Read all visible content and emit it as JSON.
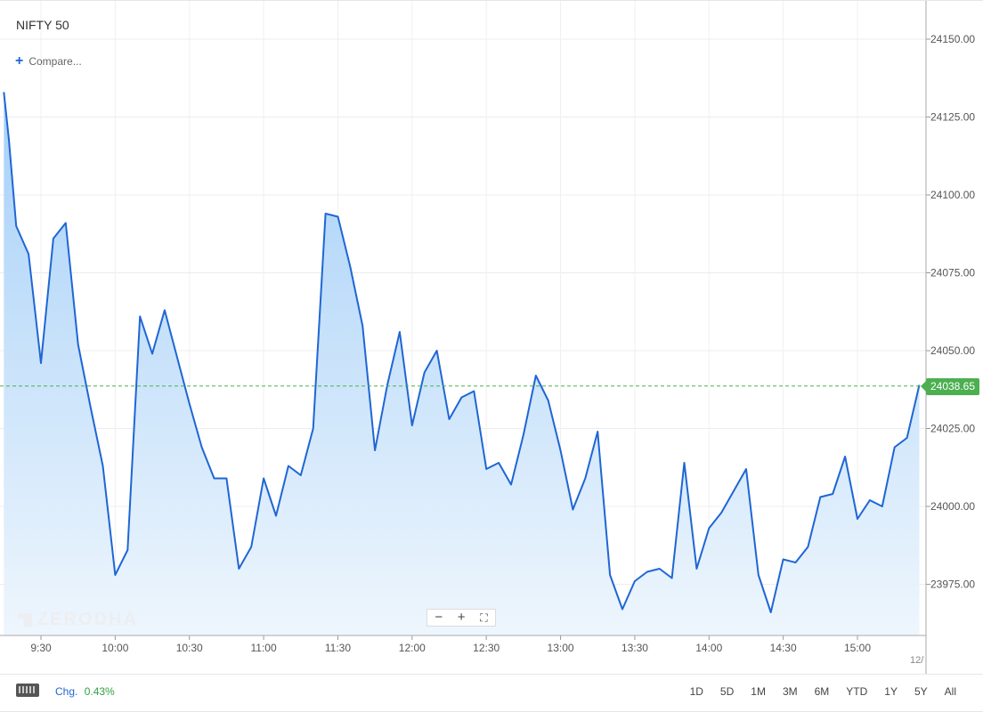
{
  "header": {
    "symbol": "NIFTY 50",
    "compare_label": "Compare..."
  },
  "watermark": "ZERODHA",
  "zoom": {
    "minus": "−",
    "plus": "+",
    "fit": "⛶"
  },
  "date_stub": "12/",
  "bottom": {
    "change_label": "Chg.",
    "change_value": "0.43%",
    "ranges": [
      "1D",
      "5D",
      "1M",
      "3M",
      "6M",
      "YTD",
      "1Y",
      "5Y",
      "All"
    ]
  },
  "colors": {
    "line": "#1f66d4",
    "fill_top": "#a6d0f8",
    "fill_bottom": "#eef6fd",
    "last_price": "#4caf50"
  },
  "chart_data": {
    "type": "area",
    "x_tick_labels": [
      "9:30",
      "10:00",
      "10:30",
      "11:00",
      "11:30",
      "12:00",
      "12:30",
      "13:00",
      "13:30",
      "14:00",
      "14:30",
      "15:00"
    ],
    "y_tick_labels": [
      "24150.00",
      "24125.00",
      "24100.00",
      "24075.00",
      "24050.00",
      "24025.00",
      "24000.00",
      "23975.00"
    ],
    "ylim": [
      23957,
      24162
    ],
    "last_price": "24038.65",
    "last_price_value": 24038.65,
    "grid": true,
    "points": [
      [
        "9:15",
        24133
      ],
      [
        "9:17",
        24118
      ],
      [
        "9:20",
        24090
      ],
      [
        "9:25",
        24081
      ],
      [
        "9:30",
        24046
      ],
      [
        "9:35",
        24086
      ],
      [
        "9:40",
        24091
      ],
      [
        "9:45",
        24052
      ],
      [
        "9:50",
        24032
      ],
      [
        "9:55",
        24013
      ],
      [
        "10:00",
        23978
      ],
      [
        "10:05",
        23986
      ],
      [
        "10:10",
        24061
      ],
      [
        "10:15",
        24049
      ],
      [
        "10:20",
        24063
      ],
      [
        "10:25",
        24048
      ],
      [
        "10:30",
        24033
      ],
      [
        "10:35",
        24019
      ],
      [
        "10:40",
        24009
      ],
      [
        "10:45",
        24009
      ],
      [
        "10:50",
        23980
      ],
      [
        "10:55",
        23987
      ],
      [
        "11:00",
        24009
      ],
      [
        "11:05",
        23997
      ],
      [
        "11:10",
        24013
      ],
      [
        "11:15",
        24010
      ],
      [
        "11:20",
        24025
      ],
      [
        "11:25",
        24094
      ],
      [
        "11:30",
        24093
      ],
      [
        "11:35",
        24077
      ],
      [
        "11:40",
        24058
      ],
      [
        "11:45",
        24018
      ],
      [
        "11:50",
        24039
      ],
      [
        "11:55",
        24056
      ],
      [
        "12:00",
        24026
      ],
      [
        "12:05",
        24043
      ],
      [
        "12:10",
        24050
      ],
      [
        "12:15",
        24028
      ],
      [
        "12:20",
        24035
      ],
      [
        "12:25",
        24037
      ],
      [
        "12:30",
        24012
      ],
      [
        "12:35",
        24014
      ],
      [
        "12:40",
        24007
      ],
      [
        "12:45",
        24023
      ],
      [
        "12:50",
        24042
      ],
      [
        "12:55",
        24034
      ],
      [
        "13:00",
        24018
      ],
      [
        "13:05",
        23999
      ],
      [
        "13:10",
        24009
      ],
      [
        "13:15",
        24024
      ],
      [
        "13:20",
        23978
      ],
      [
        "13:25",
        23967
      ],
      [
        "13:30",
        23976
      ],
      [
        "13:35",
        23979
      ],
      [
        "13:40",
        23980
      ],
      [
        "13:45",
        23977
      ],
      [
        "13:50",
        24014
      ],
      [
        "13:55",
        23980
      ],
      [
        "14:00",
        23993
      ],
      [
        "14:05",
        23998
      ],
      [
        "14:10",
        24005
      ],
      [
        "14:15",
        24012
      ],
      [
        "14:20",
        23978
      ],
      [
        "14:25",
        23966
      ],
      [
        "14:30",
        23983
      ],
      [
        "14:35",
        23982
      ],
      [
        "14:40",
        23987
      ],
      [
        "14:45",
        24003
      ],
      [
        "14:50",
        24004
      ],
      [
        "14:55",
        24016
      ],
      [
        "15:00",
        23996
      ],
      [
        "15:05",
        24002
      ],
      [
        "15:10",
        24000
      ],
      [
        "15:15",
        24019
      ],
      [
        "15:20",
        24022
      ],
      [
        "15:25",
        24039
      ]
    ]
  }
}
